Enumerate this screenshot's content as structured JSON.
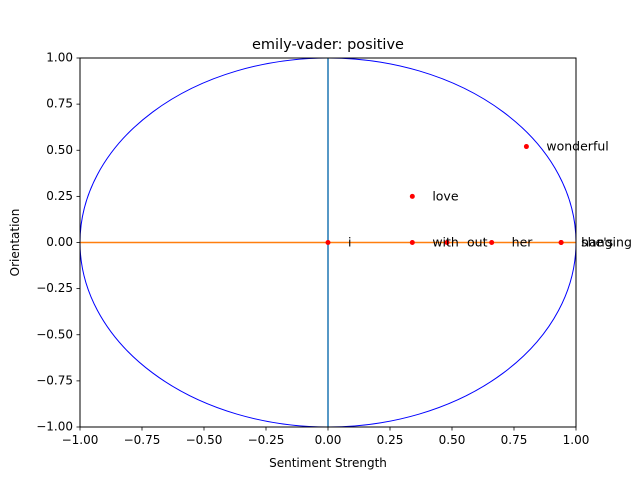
{
  "chart_data": {
    "type": "scatter",
    "title": "emily-vader: positive",
    "xlabel": "Sentiment Strength",
    "ylabel": "Orientation",
    "xlim": [
      -1.0,
      1.0
    ],
    "ylim": [
      -1.0,
      1.0
    ],
    "x_ticks": [
      "−1.00",
      "−0.75",
      "−0.50",
      "−0.25",
      "0.00",
      "0.25",
      "0.50",
      "0.75",
      "1.00"
    ],
    "x_tick_values": [
      -1.0,
      -0.75,
      -0.5,
      -0.25,
      0.0,
      0.25,
      0.5,
      0.75,
      1.0
    ],
    "y_ticks": [
      "−1.00",
      "−0.75",
      "−0.50",
      "−0.25",
      "0.00",
      "0.25",
      "0.50",
      "0.75",
      "1.00"
    ],
    "y_tick_values": [
      -1.0,
      -0.75,
      -0.5,
      -0.25,
      0.0,
      0.25,
      0.5,
      0.75,
      1.0
    ],
    "grid": false,
    "unit_circle": true,
    "points": [
      {
        "label": "i",
        "x": 0.0,
        "y": 0.0
      },
      {
        "label": "love",
        "x": 0.34,
        "y": 0.25
      },
      {
        "label": "with",
        "x": 0.34,
        "y": 0.0
      },
      {
        "label": "out",
        "x": 0.48,
        "y": 0.0
      },
      {
        "label": "her",
        "x": 0.66,
        "y": 0.0
      },
      {
        "label": "wonderful",
        "x": 0.8,
        "y": 0.52
      },
      {
        "label": "hanging",
        "x": 0.94,
        "y": 0.0
      },
      {
        "label": "she's",
        "x": 0.94,
        "y": 0.0
      }
    ],
    "colors": {
      "points": "#ff0000",
      "circle": "#0000ff",
      "horizontal_line": "#ff7f0e",
      "vertical_line": "#1f77b4"
    }
  }
}
